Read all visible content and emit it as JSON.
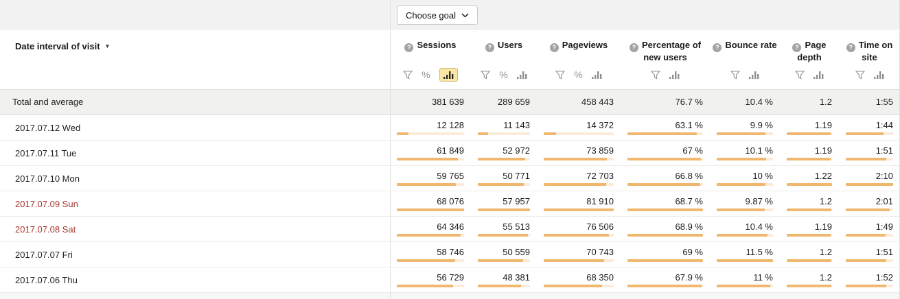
{
  "toolbar": {
    "choose_goal_label": "Choose goal"
  },
  "icons": {
    "sort_caret": "▼",
    "percent_glyph": "%"
  },
  "colors": {
    "topbar_bg": "#f2f2f2",
    "total_row_bg": "#f1f1ef",
    "accent_bar_fill": "#f0b76e",
    "accent_bar_track": "#faecd8",
    "active_tool_bg": "#fbe7a3",
    "active_tool_border": "#ccb97b",
    "weekend_text": "#a6362e"
  },
  "table": {
    "date_header": "Date interval of visit",
    "columns": [
      {
        "key": "sessions",
        "label": "Sessions",
        "tools": [
          "filter",
          "percent",
          "chart"
        ],
        "active_tool": "chart"
      },
      {
        "key": "users",
        "label": "Users",
        "tools": [
          "filter",
          "percent",
          "chart"
        ],
        "active_tool": null
      },
      {
        "key": "pageviews",
        "label": "Pageviews",
        "tools": [
          "filter",
          "percent",
          "chart"
        ],
        "active_tool": null
      },
      {
        "key": "pct_new",
        "label": "Percentage of new users",
        "tools": [
          "filter",
          "chart"
        ],
        "active_tool": null
      },
      {
        "key": "bounce",
        "label": "Bounce rate",
        "tools": [
          "filter",
          "chart"
        ],
        "active_tool": null
      },
      {
        "key": "depth",
        "label": "Page depth",
        "tools": [
          "filter",
          "chart"
        ],
        "active_tool": null
      },
      {
        "key": "time",
        "label": "Time on site",
        "tools": [
          "filter",
          "chart"
        ],
        "active_tool": null
      }
    ],
    "total_row": {
      "label": "Total and average",
      "values": [
        "381 639",
        "289 659",
        "458 443",
        "76.7 %",
        "10.4 %",
        "1.2",
        "1:55"
      ]
    },
    "rows": [
      {
        "date": "2017.07.12 Wed",
        "weekend": false,
        "values": [
          "12 128",
          "11 143",
          "14 372",
          "63.1 %",
          "9.9 %",
          "1.19",
          "1:44"
        ]
      },
      {
        "date": "2017.07.11 Tue",
        "weekend": false,
        "values": [
          "61 849",
          "52 972",
          "73 859",
          "67 %",
          "10.1 %",
          "1.19",
          "1:51"
        ]
      },
      {
        "date": "2017.07.10 Mon",
        "weekend": false,
        "values": [
          "59 765",
          "50 771",
          "72 703",
          "66.8 %",
          "10 %",
          "1.22",
          "2:10"
        ]
      },
      {
        "date": "2017.07.09 Sun",
        "weekend": true,
        "values": [
          "68 076",
          "57 957",
          "81 910",
          "68.7 %",
          "9.87 %",
          "1.2",
          "2:01"
        ]
      },
      {
        "date": "2017.07.08 Sat",
        "weekend": true,
        "values": [
          "64 346",
          "55 513",
          "76 506",
          "68.9 %",
          "10.4 %",
          "1.19",
          "1:49"
        ]
      },
      {
        "date": "2017.07.07 Fri",
        "weekend": false,
        "values": [
          "58 746",
          "50 559",
          "70 743",
          "69 %",
          "11.5 %",
          "1.2",
          "1:51"
        ]
      },
      {
        "date": "2017.07.06 Thu",
        "weekend": false,
        "values": [
          "56 729",
          "48 381",
          "68 350",
          "67.9 %",
          "11 %",
          "1.2",
          "1:52"
        ]
      }
    ]
  }
}
